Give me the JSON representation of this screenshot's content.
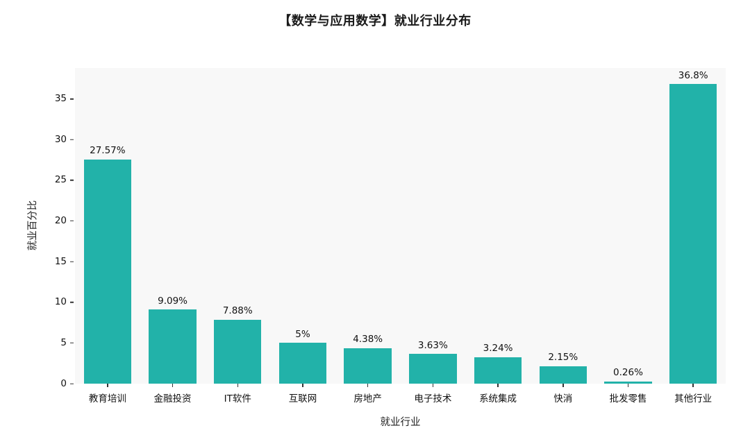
{
  "chart_data": {
    "type": "bar",
    "title": "【数学与应用数学】就业行业分布",
    "xlabel": "就业行业",
    "ylabel": "就业百分比",
    "categories": [
      "教育培训",
      "金融投资",
      "IT软件",
      "互联网",
      "房地产",
      "电子技术",
      "系统集成",
      "快消",
      "批发零售",
      "其他行业"
    ],
    "values": [
      27.57,
      9.09,
      7.88,
      5,
      4.38,
      3.63,
      3.24,
      2.15,
      0.26,
      36.8
    ],
    "value_labels": [
      "27.57%",
      "9.09%",
      "7.88%",
      "5%",
      "4.38%",
      "3.63%",
      "3.24%",
      "2.15%",
      "0.26%",
      "36.8%"
    ],
    "yticks": [
      0,
      5,
      10,
      15,
      20,
      25,
      30,
      35
    ],
    "ytick_labels": [
      "0",
      "5",
      "10",
      "15",
      "20",
      "25",
      "30",
      "35"
    ],
    "ylim": [
      0,
      38.8
    ],
    "grid": false,
    "legend": "none",
    "bar_color": "#22b2a9",
    "plot_bg": "#f8f8f8",
    "page_bg": "#ffffff",
    "text_color": "#111111"
  }
}
